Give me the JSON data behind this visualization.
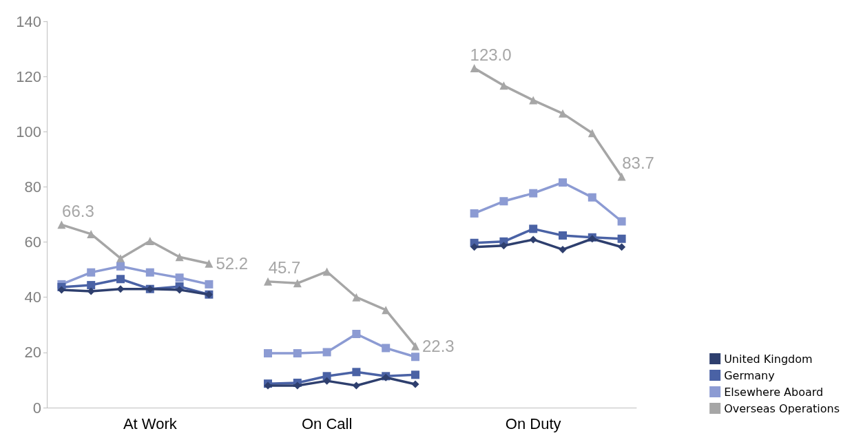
{
  "chart_data": {
    "type": "line",
    "categories": [
      null,
      null,
      null,
      "At Work",
      null,
      null,
      null,
      null,
      null,
      "On Call",
      null,
      null,
      null,
      null,
      null,
      null,
      "On Duty",
      null,
      null,
      null
    ],
    "series": [
      {
        "name": "United Kingdom",
        "color": "#2e3f6e",
        "marker": "diamond",
        "values": [
          42.7,
          42.2,
          43.0,
          43.0,
          42.7,
          41.0,
          null,
          8.0,
          8.0,
          9.7,
          8.0,
          10.9,
          8.5,
          null,
          58.2,
          58.7,
          60.9,
          57.3,
          61.2,
          58.2
        ]
      },
      {
        "name": "Germany",
        "color": "#4a62a5",
        "marker": "square",
        "values": [
          43.7,
          44.4,
          46.6,
          43.0,
          43.9,
          41.0,
          null,
          8.7,
          9.0,
          11.4,
          12.9,
          11.4,
          11.9,
          null,
          59.7,
          60.2,
          64.8,
          62.4,
          61.7,
          61.2
        ]
      },
      {
        "name": "Elsewhere Aboard",
        "color": "#8c9bd3",
        "marker": "square",
        "values": [
          44.7,
          49.0,
          51.2,
          49.0,
          47.1,
          44.7,
          null,
          19.7,
          19.7,
          20.1,
          26.7,
          21.6,
          18.4,
          null,
          70.4,
          74.8,
          77.7,
          81.6,
          76.2,
          67.5
        ]
      },
      {
        "name": "Overseas Operations",
        "color": "#a6a6a6",
        "marker": "triangle",
        "values": [
          66.3,
          62.9,
          54.1,
          60.4,
          54.6,
          52.2,
          null,
          45.7,
          45.1,
          49.3,
          40.0,
          35.4,
          22.3,
          null,
          123.0,
          116.7,
          111.4,
          106.6,
          99.5,
          83.7
        ],
        "value_labels": [
          "66.3",
          null,
          null,
          null,
          null,
          "52.2",
          null,
          "45.7",
          null,
          null,
          null,
          null,
          "22.3",
          null,
          "123.0",
          null,
          null,
          null,
          null,
          "83.7"
        ]
      }
    ],
    "ylim": [
      0,
      140
    ],
    "yticks": [
      0,
      20,
      40,
      60,
      80,
      100,
      120,
      140
    ],
    "grid": false,
    "legend": "bottom right",
    "line_style": "solid"
  }
}
